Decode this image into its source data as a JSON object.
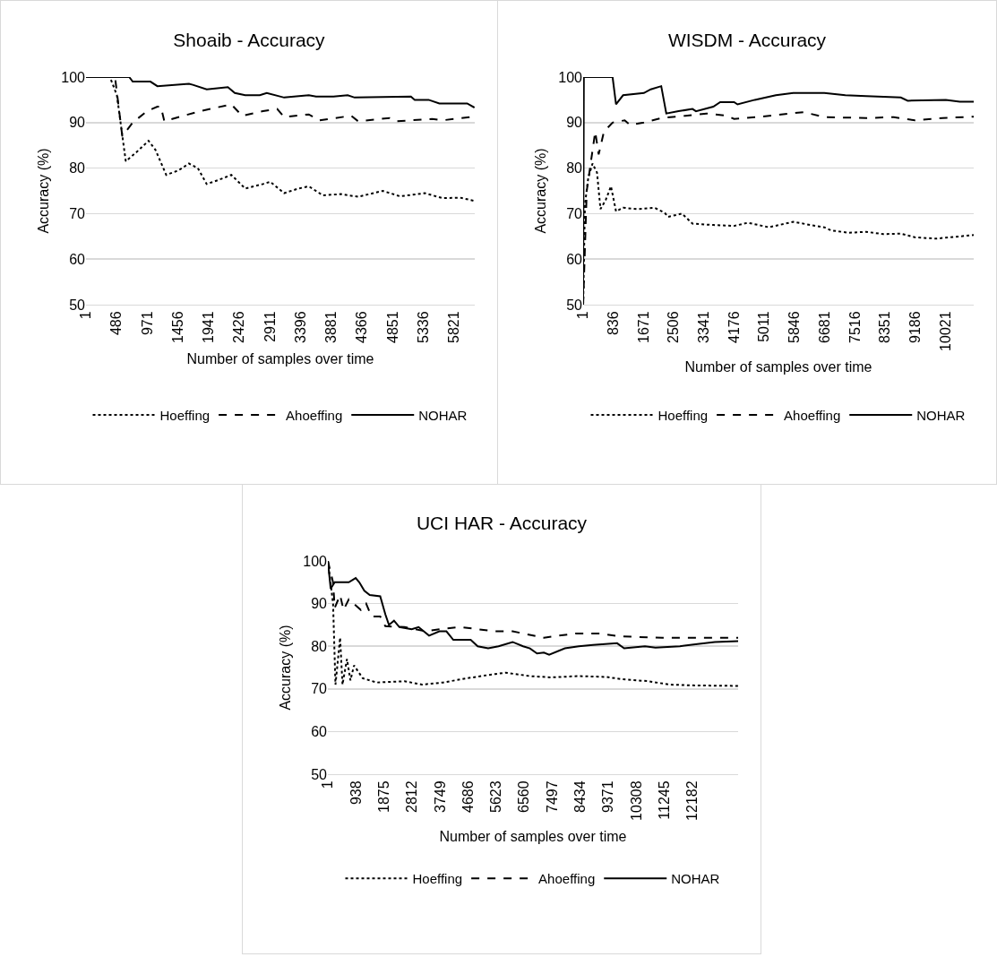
{
  "chart_data": [
    {
      "type": "line",
      "title": "Shoaib - Accuracy",
      "xlabel": "Number of samples over time",
      "ylabel": "Accuracy (%)",
      "xlim": [
        1,
        6150
      ],
      "xticks": [
        1,
        486,
        971,
        1456,
        1941,
        2426,
        2911,
        3396,
        3881,
        4366,
        4851,
        5336,
        5821
      ],
      "ylim": [
        50,
        100
      ],
      "yticks": [
        50,
        60,
        70,
        80,
        90,
        100
      ],
      "grid": "y",
      "legend": "bottom",
      "marker": "none",
      "series": [
        {
          "name": "Hoeffing",
          "color": "#000000",
          "line_style": "dotted",
          "x": [
            1,
            380,
            490,
            630,
            800,
            990,
            1100,
            1270,
            1465,
            1630,
            1770,
            1910,
            2080,
            2300,
            2520,
            2800,
            2915,
            3135,
            3360,
            3525,
            3750,
            4025,
            4305,
            4695,
            4970,
            5360,
            5640,
            5920,
            6145
          ],
          "values": [
            100,
            100,
            96,
            81.5,
            83.5,
            86,
            84,
            78.5,
            79.5,
            81,
            80,
            76.5,
            77.3,
            78.5,
            75.5,
            76.5,
            77,
            74.5,
            75.5,
            76,
            74,
            74.3,
            73.7,
            75,
            73.8,
            74.5,
            73.4,
            73.5,
            72.8
          ]
        },
        {
          "name": "Ahoeffing",
          "color": "#000000",
          "line_style": "dashed",
          "x": [
            1,
            460,
            575,
            740,
            965,
            1130,
            1185,
            1240,
            1800,
            2300,
            2470,
            2800,
            3025,
            3135,
            3525,
            3690,
            4195,
            4305,
            4805,
            4920,
            5475,
            5640,
            6085,
            6145
          ],
          "values": [
            100,
            100,
            87,
            90,
            92.5,
            93.5,
            93.5,
            90.3,
            92.5,
            94,
            91.5,
            92.5,
            93,
            91.2,
            91.8,
            90.5,
            91.5,
            90.3,
            91,
            90.3,
            90.8,
            90.5,
            91.2,
            90.8
          ]
        },
        {
          "name": "NOHAR",
          "color": "#000000",
          "line_style": "solid",
          "x": [
            1,
            685,
            740,
            1020,
            1130,
            1630,
            1690,
            1910,
            2245,
            2355,
            2520,
            2750,
            2860,
            3135,
            3525,
            3640,
            3915,
            4140,
            4250,
            5140,
            5200,
            5420,
            5590,
            6030,
            6145
          ],
          "values": [
            100,
            100,
            99,
            99,
            98,
            98.5,
            98.3,
            97.3,
            97.8,
            96.5,
            96,
            96,
            96.5,
            95.5,
            96,
            95.7,
            95.7,
            96,
            95.5,
            95.7,
            95,
            95,
            94.2,
            94.2,
            93.3
          ]
        }
      ]
    },
    {
      "type": "line",
      "title": "WISDM - Accuracy",
      "xlabel": "Number of samples over time",
      "ylabel": "Accuracy (%)",
      "xlim": [
        1,
        10800
      ],
      "xticks": [
        1,
        836,
        1671,
        2506,
        3341,
        4176,
        5011,
        5846,
        6681,
        7516,
        8351,
        9186,
        10021
      ],
      "ylim": [
        50,
        100
      ],
      "yticks": [
        50,
        60,
        70,
        80,
        90,
        100
      ],
      "grid": "y",
      "legend": "bottom",
      "marker": "none",
      "series": [
        {
          "name": "Hoeffing",
          "color": "#000000",
          "line_style": "dotted",
          "x": [
            1,
            50,
            145,
            260,
            385,
            480,
            625,
            770,
            910,
            1105,
            1490,
            1970,
            2255,
            2350,
            2735,
            3025,
            3600,
            4175,
            4560,
            5135,
            5810,
            6290,
            6670,
            6865,
            7345,
            7825,
            8305,
            8785,
            9170,
            9745,
            10415,
            10800
          ],
          "values": [
            50,
            72,
            78,
            81,
            79,
            71,
            73,
            76,
            70.5,
            71.3,
            71,
            71.3,
            70.2,
            69.3,
            70,
            67.8,
            67.5,
            67.3,
            68,
            67,
            68.2,
            67.5,
            67,
            66.3,
            65.8,
            66,
            65.5,
            65.6,
            64.8,
            64.5,
            65,
            65.3
          ]
        },
        {
          "name": "Ahoeffing",
          "color": "#000000",
          "line_style": "dashed",
          "x": [
            1,
            100,
            335,
            430,
            575,
            815,
            1150,
            1295,
            1680,
            2160,
            2830,
            3410,
            3985,
            4175,
            4945,
            5710,
            6095,
            6670,
            7825,
            8590,
            9170,
            9935,
            10800
          ],
          "values": [
            50,
            75,
            88,
            83,
            88,
            90,
            90.5,
            89.5,
            90,
            91,
            91.5,
            92,
            91.5,
            90.8,
            91.3,
            92,
            92.3,
            91.2,
            91,
            91.2,
            90.5,
            91,
            91.3
          ]
        },
        {
          "name": "NOHAR",
          "color": "#000000",
          "line_style": "solid",
          "x": [
            1,
            20,
            815,
            910,
            1105,
            1680,
            1870,
            2160,
            2300,
            2640,
            3025,
            3120,
            3600,
            3790,
            4175,
            4270,
            4750,
            5330,
            5810,
            6670,
            7250,
            7825,
            8785,
            8975,
            10030,
            10415,
            10800
          ],
          "values": [
            50,
            100,
            100,
            94,
            96,
            96.5,
            97.3,
            98,
            92,
            92.5,
            93,
            92.5,
            93.5,
            94.5,
            94.5,
            94,
            95,
            96,
            96.5,
            96.5,
            96,
            95.8,
            95.5,
            94.8,
            95,
            94.6,
            94.6
          ]
        }
      ]
    },
    {
      "type": "line",
      "title": "UCI HAR - Accuracy",
      "xlabel": "Number of samples over time",
      "ylabel": "Accuracy (%)",
      "xlim": [
        1,
        13700
      ],
      "xticks": [
        1,
        938,
        1875,
        2812,
        3749,
        4686,
        5623,
        6560,
        7497,
        8434,
        9371,
        10308,
        11245,
        12182
      ],
      "ylim": [
        50,
        100
      ],
      "yticks": [
        50,
        60,
        70,
        80,
        90,
        100
      ],
      "grid": "y",
      "legend": "bottom",
      "marker": "none",
      "series": [
        {
          "name": "Hoeffing",
          "color": "#000000",
          "line_style": "dotted",
          "x": [
            1,
            175,
            255,
            410,
            490,
            640,
            755,
            875,
            1165,
            1630,
            2560,
            3145,
            3840,
            4655,
            5590,
            5935,
            6750,
            7450,
            8380,
            9310,
            9780,
            10710,
            11405,
            12340,
            13700
          ],
          "values": [
            100,
            90,
            71,
            82,
            71,
            77,
            72,
            75.5,
            72.5,
            71.5,
            71.8,
            71,
            71.5,
            72.5,
            73.5,
            73.8,
            73,
            72.7,
            73,
            72.8,
            72.3,
            71.8,
            71,
            70.8,
            70.7
          ]
        },
        {
          "name": "Ahoeffing",
          "color": "#000000",
          "line_style": "dashed",
          "x": [
            1,
            175,
            230,
            410,
            525,
            700,
            1105,
            1280,
            1455,
            1750,
            1920,
            2560,
            3260,
            3725,
            4420,
            5590,
            6170,
            7215,
            8265,
            9080,
            9780,
            11175,
            13700
          ],
          "values": [
            100,
            95,
            89,
            92,
            88.5,
            91,
            88.5,
            90,
            87,
            87,
            84.7,
            84.5,
            83.5,
            84,
            84.5,
            83.5,
            83.5,
            82,
            83,
            83,
            82.3,
            82,
            82
          ]
        },
        {
          "name": "NOHAR",
          "color": "#000000",
          "line_style": "solid",
          "x": [
            1,
            95,
            230,
            700,
            930,
            1050,
            1220,
            1400,
            1750,
            1920,
            2040,
            2210,
            2390,
            2800,
            3030,
            3380,
            3725,
            3960,
            4190,
            4770,
            5005,
            5355,
            5700,
            6170,
            6520,
            6750,
            6985,
            7215,
            7390,
            7915,
            8380,
            8850,
            9660,
            9895,
            10590,
            10940,
            11755,
            12340,
            12920,
            13700
          ],
          "values": [
            100,
            93.5,
            95,
            95,
            96,
            95,
            93,
            92,
            91.7,
            87.5,
            85,
            86,
            84.5,
            84,
            84.5,
            82.5,
            83.5,
            83.5,
            81.5,
            81.5,
            80,
            79.5,
            80,
            81,
            80,
            79.5,
            78.3,
            78.5,
            78,
            79.5,
            80,
            80.3,
            80.7,
            79.5,
            80,
            79.7,
            80,
            80.5,
            81,
            81.2
          ]
        }
      ]
    }
  ]
}
